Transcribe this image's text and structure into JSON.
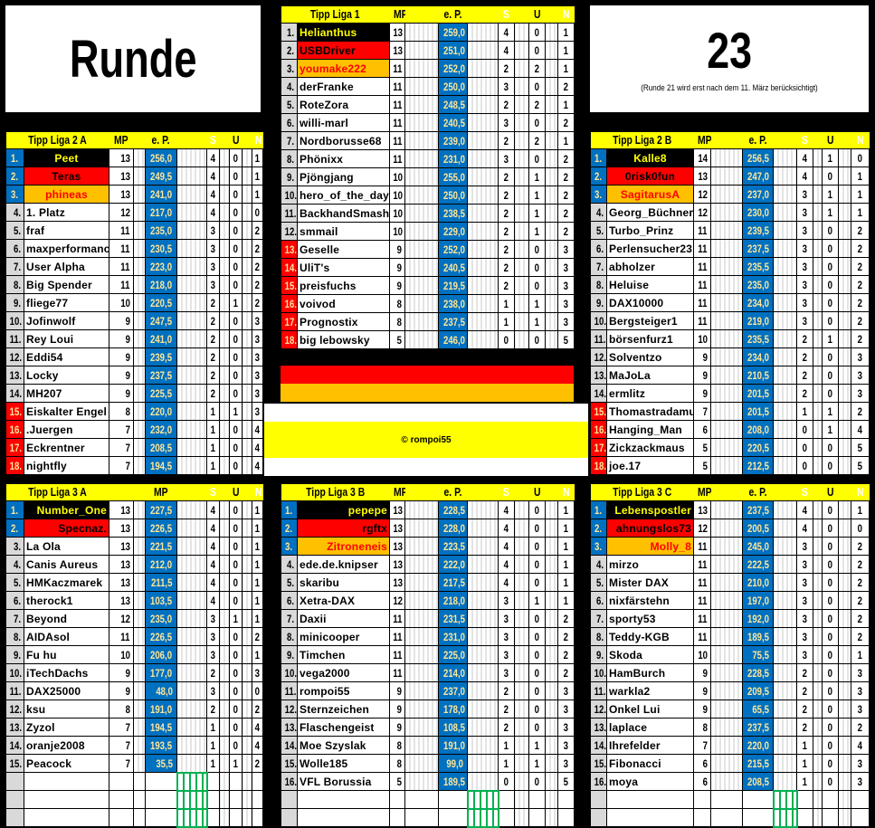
{
  "header": {
    "runde_label": "Runde",
    "round_number": "23",
    "note": "(Runde 21 wird erst nach dem 11. März berücksichtigt)"
  },
  "footer": {
    "copyright": "© rompoi55"
  },
  "colors": {
    "blue": "#0070c0",
    "yellow": "#ffff00",
    "red": "#ff0000",
    "orange": "#ffc000",
    "ep_text": "#ffe699",
    "grid_green": "#00b050"
  },
  "columns": {
    "mp": "MP",
    "ep": "e. P.",
    "s": "S",
    "u": "U",
    "n": "N"
  },
  "leagues": {
    "liga1": {
      "title": "Tipp Liga 1",
      "mp_label": "MP",
      "ep_label": "e. P.",
      "empty_rows": 0,
      "rows": [
        [
          "1.",
          "Helianthus",
          "13",
          "259,0",
          "4",
          "0",
          "1",
          "m",
          1
        ],
        [
          "2.",
          "USBDriver",
          "13",
          "251,0",
          "4",
          "0",
          "1",
          "m",
          2
        ],
        [
          "3.",
          "youmake222",
          "11",
          "252,0",
          "2",
          "2",
          "1",
          "m",
          3
        ],
        [
          "4.",
          "derFranke",
          "11",
          "250,0",
          "3",
          "0",
          "2",
          "m",
          0
        ],
        [
          "5.",
          "RoteZora",
          "11",
          "248,5",
          "2",
          "2",
          "1",
          "m",
          0
        ],
        [
          "6.",
          "willi-marl",
          "11",
          "240,5",
          "3",
          "0",
          "2",
          "m",
          0
        ],
        [
          "7.",
          "Nordborusse68",
          "11",
          "239,0",
          "2",
          "2",
          "1",
          "m",
          0
        ],
        [
          "8.",
          "Phönixx",
          "11",
          "231,0",
          "3",
          "0",
          "2",
          "m",
          0
        ],
        [
          "9.",
          "Pjöngjang",
          "10",
          "255,0",
          "2",
          "1",
          "2",
          "m",
          0
        ],
        [
          "10.",
          "hero_of_the_day",
          "10",
          "250,0",
          "2",
          "1",
          "2",
          "m",
          0
        ],
        [
          "11.",
          "BackhandSmash",
          "10",
          "238,5",
          "2",
          "1",
          "2",
          "m",
          0
        ],
        [
          "12.",
          "smmail",
          "10",
          "229,0",
          "2",
          "1",
          "2",
          "m",
          0
        ],
        [
          "13.",
          "Geselle",
          "9",
          "252,0",
          "2",
          "0",
          "3",
          "d",
          0
        ],
        [
          "14.",
          "UliT's",
          "9",
          "240,5",
          "2",
          "0",
          "3",
          "d",
          0
        ],
        [
          "15.",
          "preisfuchs",
          "9",
          "219,5",
          "2",
          "0",
          "3",
          "d",
          0
        ],
        [
          "16.",
          "voivod",
          "8",
          "238,0",
          "1",
          "1",
          "3",
          "d",
          0
        ],
        [
          "17.",
          "Prognostix",
          "8",
          "237,5",
          "1",
          "1",
          "3",
          "d",
          0
        ],
        [
          "18.",
          "big lebowsky",
          "5",
          "246,0",
          "0",
          "0",
          "5",
          "d",
          0
        ]
      ]
    },
    "liga2a": {
      "title": "Tipp Liga 2 A",
      "mp_label": "MP",
      "ep_label": "e. P.",
      "empty_rows": 0,
      "rows": [
        [
          "1.",
          "Peet",
          "13",
          "256,0",
          "4",
          "0",
          "1",
          "u",
          1
        ],
        [
          "2.",
          "Teras",
          "13",
          "249,5",
          "4",
          "0",
          "1",
          "u",
          2
        ],
        [
          "3.",
          "phineas",
          "13",
          "241,0",
          "4",
          "0",
          "1",
          "u",
          3
        ],
        [
          "4.",
          "1. Platz",
          "12",
          "217,0",
          "4",
          "0",
          "0",
          "m",
          0
        ],
        [
          "5.",
          "fraf",
          "11",
          "235,0",
          "3",
          "0",
          "2",
          "m",
          0
        ],
        [
          "6.",
          "maxperformance",
          "11",
          "230,5",
          "3",
          "0",
          "2",
          "m",
          0
        ],
        [
          "7.",
          "User Alpha",
          "11",
          "223,0",
          "3",
          "0",
          "2",
          "m",
          0
        ],
        [
          "8.",
          "Big Spender",
          "11",
          "218,0",
          "3",
          "0",
          "2",
          "m",
          0
        ],
        [
          "9.",
          "fliege77",
          "10",
          "220,5",
          "2",
          "1",
          "2",
          "m",
          0
        ],
        [
          "10.",
          "Jofinwolf",
          "9",
          "247,5",
          "2",
          "0",
          "3",
          "m",
          0
        ],
        [
          "11.",
          "Rey Loui",
          "9",
          "241,0",
          "2",
          "0",
          "3",
          "m",
          0
        ],
        [
          "12.",
          "Eddi54",
          "9",
          "239,5",
          "2",
          "0",
          "3",
          "m",
          0
        ],
        [
          "13.",
          "Locky",
          "9",
          "237,5",
          "2",
          "0",
          "3",
          "m",
          0
        ],
        [
          "14.",
          "MH207",
          "9",
          "225,5",
          "2",
          "0",
          "3",
          "m",
          0
        ],
        [
          "15.",
          "Eiskalter Engel",
          "8",
          "220,0",
          "1",
          "1",
          "3",
          "d",
          0
        ],
        [
          "16.",
          ".Juergen",
          "7",
          "232,0",
          "1",
          "0",
          "4",
          "d",
          0
        ],
        [
          "17.",
          "Eckrentner",
          "7",
          "208,5",
          "1",
          "0",
          "4",
          "d",
          0
        ],
        [
          "18.",
          "nightfly",
          "7",
          "194,5",
          "1",
          "0",
          "4",
          "d",
          0
        ]
      ]
    },
    "liga2b": {
      "title": "Tipp Liga 2 B",
      "mp_label": "MP",
      "ep_label": "e. P.",
      "empty_rows": 0,
      "rows": [
        [
          "1.",
          "Kalle8",
          "14",
          "256,5",
          "4",
          "1",
          "0",
          "u",
          1
        ],
        [
          "2.",
          "0risk0fun",
          "13",
          "247,0",
          "4",
          "0",
          "1",
          "u",
          2
        ],
        [
          "3.",
          "SagitarusA",
          "12",
          "237,0",
          "3",
          "1",
          "1",
          "u",
          3
        ],
        [
          "4.",
          "Georg_Büchner",
          "12",
          "230,0",
          "3",
          "1",
          "1",
          "m",
          0
        ],
        [
          "5.",
          "Turbo_Prinz",
          "11",
          "239,5",
          "3",
          "0",
          "2",
          "m",
          0
        ],
        [
          "6.",
          "Perlensucher23",
          "11",
          "237,5",
          "3",
          "0",
          "2",
          "m",
          0
        ],
        [
          "7.",
          "abholzer",
          "11",
          "235,5",
          "3",
          "0",
          "2",
          "m",
          0
        ],
        [
          "8.",
          "Heluise",
          "11",
          "235,0",
          "3",
          "0",
          "2",
          "m",
          0
        ],
        [
          "9.",
          "DAX10000",
          "11",
          "234,0",
          "3",
          "0",
          "2",
          "m",
          0
        ],
        [
          "10.",
          "Bergsteiger1",
          "11",
          "219,0",
          "3",
          "0",
          "2",
          "m",
          0
        ],
        [
          "11.",
          "börsenfurz1",
          "10",
          "235,5",
          "2",
          "1",
          "2",
          "m",
          0
        ],
        [
          "12.",
          "Solventzo",
          "9",
          "234,0",
          "2",
          "0",
          "3",
          "m",
          0
        ],
        [
          "13.",
          "MaJoLa",
          "9",
          "210,5",
          "2",
          "0",
          "3",
          "m",
          0
        ],
        [
          "14.",
          "ermlitz",
          "9",
          "201,5",
          "2",
          "0",
          "3",
          "m",
          0
        ],
        [
          "15.",
          "Thomastradamus",
          "7",
          "201,5",
          "1",
          "1",
          "2",
          "d",
          0
        ],
        [
          "16.",
          "Hanging_Man",
          "6",
          "208,0",
          "0",
          "1",
          "4",
          "d",
          0
        ],
        [
          "17.",
          "Zickzackmaus",
          "5",
          "220,5",
          "0",
          "0",
          "5",
          "d",
          0
        ],
        [
          "18.",
          "joe.17",
          "5",
          "212,5",
          "0",
          "0",
          "5",
          "d",
          0
        ]
      ]
    },
    "liga3a": {
      "title": "Tipp Liga 3 A",
      "mp_label": "",
      "ep_label": "MP",
      "empty_rows": 3,
      "rows": [
        [
          "1.",
          "Number_One",
          "13",
          "227,5",
          "4",
          "0",
          "1",
          "u",
          1
        ],
        [
          "2.",
          "Specnaz.",
          "13",
          "226,5",
          "4",
          "0",
          "1",
          "u",
          2
        ],
        [
          "3.",
          "La Ola",
          "13",
          "221,5",
          "4",
          "0",
          "1",
          "m",
          0
        ],
        [
          "4.",
          "Canis Aureus",
          "13",
          "212,0",
          "4",
          "0",
          "1",
          "m",
          0
        ],
        [
          "5.",
          "HMKaczmarek",
          "13",
          "211,5",
          "4",
          "0",
          "1",
          "m",
          0
        ],
        [
          "6.",
          "therock1",
          "13",
          "103,5",
          "4",
          "0",
          "1",
          "m",
          0
        ],
        [
          "7.",
          "Beyond",
          "12",
          "235,0",
          "3",
          "1",
          "1",
          "m",
          0
        ],
        [
          "8.",
          "AIDAsol",
          "11",
          "226,5",
          "3",
          "0",
          "2",
          "m",
          0
        ],
        [
          "9.",
          "Fu hu",
          "10",
          "206,0",
          "3",
          "0",
          "1",
          "m",
          0
        ],
        [
          "10.",
          "iTechDachs",
          "9",
          "177,0",
          "2",
          "0",
          "3",
          "m",
          0
        ],
        [
          "11.",
          "DAX25000",
          "9",
          "48,0",
          "3",
          "0",
          "0",
          "m",
          0
        ],
        [
          "12.",
          "ksu",
          "8",
          "191,0",
          "2",
          "0",
          "2",
          "m",
          0
        ],
        [
          "13.",
          "Zyzol",
          "7",
          "194,5",
          "1",
          "0",
          "4",
          "m",
          0
        ],
        [
          "14.",
          "oranje2008",
          "7",
          "193,5",
          "1",
          "0",
          "4",
          "m",
          0
        ],
        [
          "15.",
          "Peacock",
          "7",
          "35,5",
          "1",
          "1",
          "2",
          "m",
          0
        ]
      ]
    },
    "liga3b": {
      "title": "Tipp Liga 3 B",
      "mp_label": "MP",
      "ep_label": "e. P.",
      "empty_rows": 2,
      "rows": [
        [
          "1.",
          "pepepe",
          "13",
          "228,5",
          "4",
          "0",
          "1",
          "u",
          1
        ],
        [
          "2.",
          "rgftx",
          "13",
          "228,0",
          "4",
          "0",
          "1",
          "u",
          2
        ],
        [
          "3.",
          "Zitroneneis",
          "13",
          "223,5",
          "4",
          "0",
          "1",
          "u",
          3
        ],
        [
          "4.",
          "ede.de.knipser",
          "13",
          "222,0",
          "4",
          "0",
          "1",
          "m",
          0
        ],
        [
          "5.",
          "skaribu",
          "13",
          "217,5",
          "4",
          "0",
          "1",
          "m",
          0
        ],
        [
          "6.",
          "Xetra-DAX",
          "12",
          "218,0",
          "3",
          "1",
          "1",
          "m",
          0
        ],
        [
          "7.",
          "Daxii",
          "11",
          "231,5",
          "3",
          "0",
          "2",
          "m",
          0
        ],
        [
          "8.",
          "minicooper",
          "11",
          "231,0",
          "3",
          "0",
          "2",
          "m",
          0
        ],
        [
          "9.",
          "Timchen",
          "11",
          "225,0",
          "3",
          "0",
          "2",
          "m",
          0
        ],
        [
          "10.",
          "vega2000",
          "11",
          "214,0",
          "3",
          "0",
          "2",
          "m",
          0
        ],
        [
          "11.",
          "rompoi55",
          "9",
          "237,0",
          "2",
          "0",
          "3",
          "m",
          0
        ],
        [
          "12.",
          "Sternzeichen",
          "9",
          "178,0",
          "2",
          "0",
          "3",
          "m",
          0
        ],
        [
          "13.",
          "Flaschengeist",
          "9",
          "108,5",
          "2",
          "0",
          "3",
          "m",
          0
        ],
        [
          "14.",
          "Moe Szyslak",
          "8",
          "191,0",
          "1",
          "1",
          "3",
          "m",
          0
        ],
        [
          "15.",
          "Wolle185",
          "8",
          "99,0",
          "1",
          "1",
          "3",
          "m",
          0
        ],
        [
          "16.",
          "VFL Borussia",
          "5",
          "189,5",
          "0",
          "0",
          "5",
          "m",
          0
        ]
      ]
    },
    "liga3c": {
      "title": "Tipp Liga 3 C",
      "mp_label": "MP",
      "ep_label": "e. P.",
      "empty_rows": 2,
      "rows": [
        [
          "1.",
          "Lebenspostler",
          "13",
          "237,5",
          "4",
          "0",
          "1",
          "u",
          1
        ],
        [
          "2.",
          "ahnungslos73",
          "12",
          "200,5",
          "4",
          "0",
          "0",
          "u",
          2
        ],
        [
          "3.",
          "Molly_8",
          "11",
          "245,0",
          "3",
          "0",
          "2",
          "u",
          3
        ],
        [
          "4.",
          "mirzo",
          "11",
          "222,5",
          "3",
          "0",
          "2",
          "m",
          0
        ],
        [
          "5.",
          "Mister DAX",
          "11",
          "210,0",
          "3",
          "0",
          "2",
          "m",
          0
        ],
        [
          "6.",
          "nixfärstehn",
          "11",
          "197,0",
          "3",
          "0",
          "2",
          "m",
          0
        ],
        [
          "7.",
          "sporty53",
          "11",
          "192,0",
          "3",
          "0",
          "2",
          "m",
          0
        ],
        [
          "8.",
          "Teddy-KGB",
          "11",
          "189,5",
          "3",
          "0",
          "2",
          "m",
          0
        ],
        [
          "9.",
          "Skoda",
          "10",
          "75,5",
          "3",
          "0",
          "1",
          "m",
          0
        ],
        [
          "10.",
          "HamBurch",
          "9",
          "228,5",
          "2",
          "0",
          "3",
          "m",
          0
        ],
        [
          "11.",
          "warkla2",
          "9",
          "209,5",
          "2",
          "0",
          "3",
          "m",
          0
        ],
        [
          "12.",
          "Onkel Lui",
          "9",
          "65,5",
          "2",
          "0",
          "3",
          "m",
          0
        ],
        [
          "13.",
          "laplace",
          "8",
          "237,5",
          "2",
          "0",
          "2",
          "m",
          0
        ],
        [
          "14.",
          "Ihrefelder",
          "7",
          "220,0",
          "1",
          "0",
          "4",
          "m",
          0
        ],
        [
          "15.",
          "Fibonacci",
          "6",
          "215,5",
          "1",
          "0",
          "3",
          "m",
          0
        ],
        [
          "16.",
          "moya",
          "6",
          "208,5",
          "1",
          "0",
          "3",
          "m",
          0
        ]
      ]
    }
  }
}
